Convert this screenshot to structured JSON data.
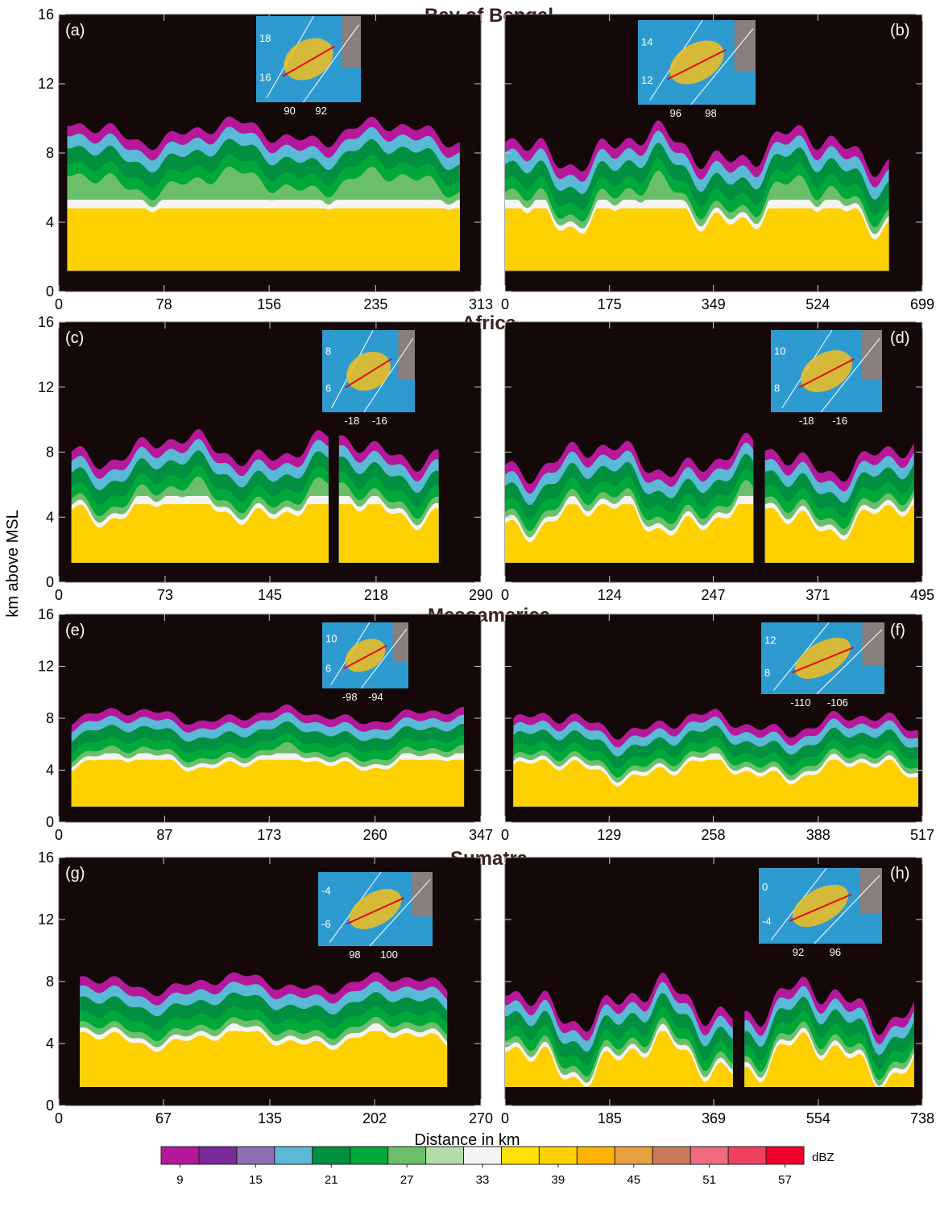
{
  "y_axis_label": "km above MSL",
  "x_axis_label": "Distance in km",
  "rows": [
    {
      "title": "Bay of Bengal",
      "panels": [
        {
          "label": "(a)",
          "type": "radar-cross-section",
          "xlim": [
            0,
            313
          ],
          "xticks": [
            0,
            78,
            156,
            235,
            313
          ],
          "ylim": [
            0,
            16
          ],
          "yticks": [
            0,
            4,
            8,
            12,
            16
          ],
          "inset": {
            "yticks": [
              18,
              16
            ],
            "xticks": [
              90,
              92
            ]
          }
        },
        {
          "label": "(b)",
          "type": "radar-cross-section",
          "xlim": [
            0,
            699
          ],
          "xticks": [
            0,
            175,
            349,
            524,
            699
          ],
          "ylim": [
            0,
            16
          ],
          "yticks": [
            0,
            4,
            8,
            12,
            16
          ],
          "inset": {
            "yticks": [
              14,
              12
            ],
            "xticks": [
              96,
              98
            ]
          }
        }
      ]
    },
    {
      "title": "Africa",
      "panels": [
        {
          "label": "(c)",
          "type": "radar-cross-section",
          "xlim": [
            0,
            290
          ],
          "xticks": [
            0,
            73,
            145,
            218,
            290
          ],
          "ylim": [
            0,
            16
          ],
          "yticks": [
            0,
            4,
            8,
            12,
            16
          ],
          "inset": {
            "yticks": [
              8,
              6
            ],
            "xticks": [
              -18,
              -16
            ]
          }
        },
        {
          "label": "(d)",
          "type": "radar-cross-section",
          "xlim": [
            0,
            495
          ],
          "xticks": [
            0,
            124,
            247,
            371,
            495
          ],
          "ylim": [
            0,
            16
          ],
          "yticks": [
            0,
            4,
            8,
            12,
            16
          ],
          "inset": {
            "yticks": [
              10,
              8
            ],
            "xticks": [
              -18,
              -16
            ]
          }
        }
      ]
    },
    {
      "title": "Mesoamerica",
      "panels": [
        {
          "label": "(e)",
          "type": "radar-cross-section",
          "xlim": [
            0,
            347
          ],
          "xticks": [
            0,
            87,
            173,
            260,
            347
          ],
          "ylim": [
            0,
            16
          ],
          "yticks": [
            0,
            4,
            8,
            12,
            16
          ],
          "inset": {
            "yticks": [
              10,
              6
            ],
            "xticks": [
              -98,
              -94
            ]
          }
        },
        {
          "label": "(f)",
          "type": "radar-cross-section",
          "xlim": [
            0,
            517
          ],
          "xticks": [
            0,
            129,
            258,
            388,
            517
          ],
          "ylim": [
            0,
            16
          ],
          "yticks": [
            0,
            4,
            8,
            12,
            16
          ],
          "inset": {
            "yticks": [
              12,
              8
            ],
            "xticks": [
              -110,
              -106
            ]
          }
        }
      ]
    },
    {
      "title": "Sumatra",
      "panels": [
        {
          "label": "(g)",
          "type": "radar-cross-section",
          "xlim": [
            0,
            270
          ],
          "xticks": [
            0,
            67,
            135,
            202,
            270
          ],
          "ylim": [
            0,
            16
          ],
          "yticks": [
            0,
            4,
            8,
            12,
            16
          ],
          "inset": {
            "yticks": [
              -4,
              -6
            ],
            "xticks": [
              98,
              100
            ]
          }
        },
        {
          "label": "(h)",
          "type": "radar-cross-section",
          "xlim": [
            0,
            738
          ],
          "xticks": [
            0,
            185,
            369,
            554,
            738
          ],
          "ylim": [
            0,
            16
          ],
          "yticks": [
            0,
            4,
            8,
            12,
            16
          ],
          "inset": {
            "yticks": [
              0,
              -4
            ],
            "xticks": [
              92,
              96
            ]
          }
        }
      ]
    }
  ],
  "colorbar": {
    "unit": "dBZ",
    "lim": [
      7.5,
      58.5
    ],
    "ticks": [
      9,
      15,
      21,
      27,
      33,
      39,
      45,
      51,
      57
    ],
    "colors": [
      "#b5189a",
      "#7a2a9a",
      "#8e6fb5",
      "#5ab9d6",
      "#009040",
      "#00a83a",
      "#6cbf6a",
      "#b2dca8",
      "#f4f4f4",
      "#ffe000",
      "#ffd000",
      "#ffb400",
      "#e8a040",
      "#c87a5a",
      "#f06a80",
      "#f04060",
      "#f0002a"
    ]
  }
}
